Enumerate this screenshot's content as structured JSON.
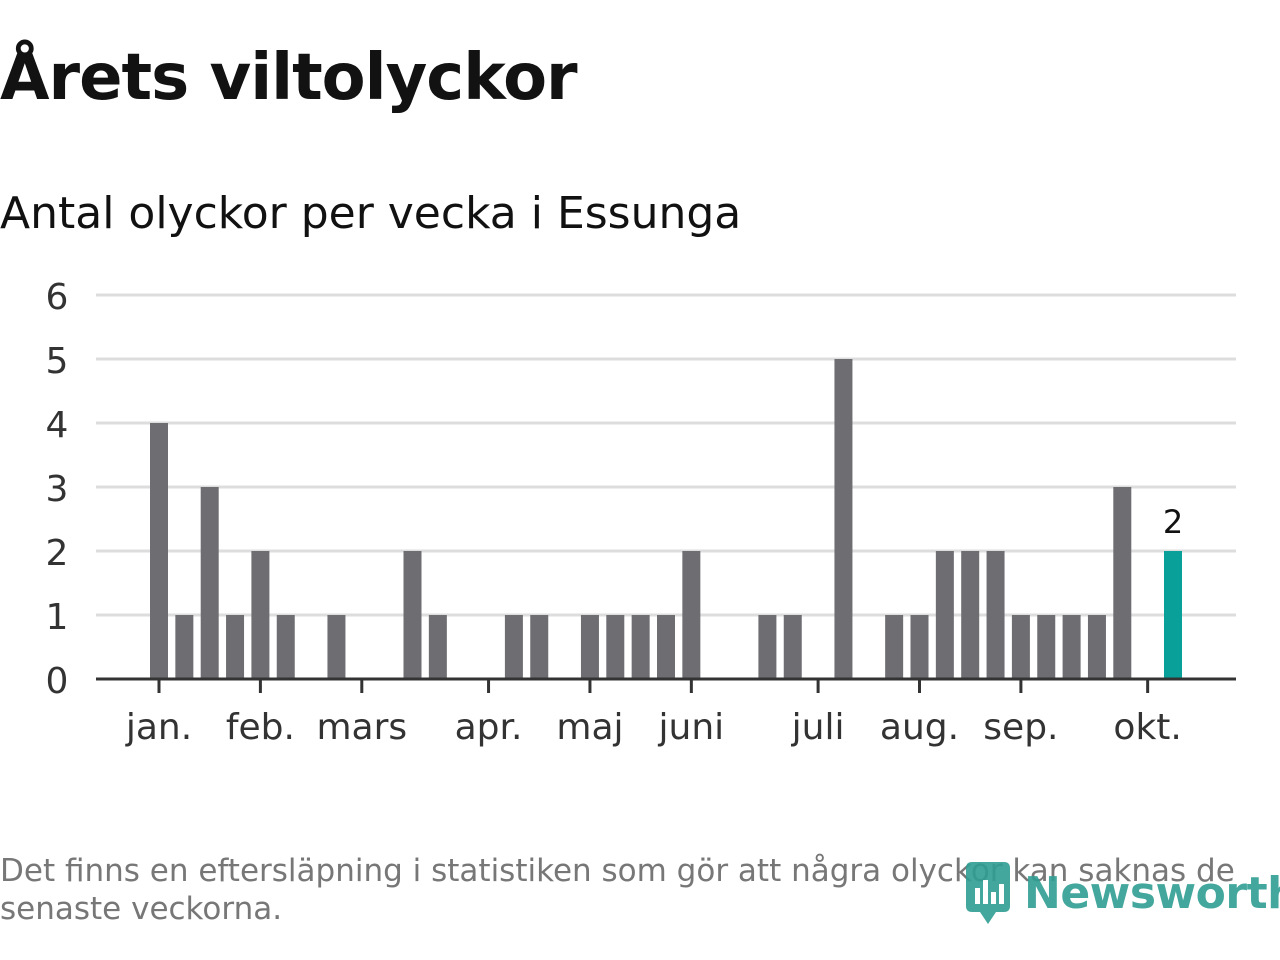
{
  "title": "Årets viltolyckor",
  "subtitle": "Antal olyckor per vecka i Essunga",
  "note": "Det finns en eftersläpning i statistiken som gör att några olyckor kan saknas de senaste veckorna.",
  "logo_text": "Newsworthy",
  "colors": {
    "bar": "#6e6d72",
    "highlight": "#09a09a",
    "grid": "#dddddd",
    "axis": "#333333",
    "logo": "#2f9e93"
  },
  "chart_data": {
    "type": "bar",
    "x": [
      1,
      2,
      3,
      4,
      5,
      6,
      7,
      8,
      9,
      10,
      11,
      12,
      13,
      14,
      15,
      16,
      17,
      18,
      19,
      20,
      21,
      22,
      23,
      24,
      25,
      26,
      27,
      28,
      29,
      30,
      31,
      32,
      33,
      34,
      35,
      36,
      37,
      38,
      39,
      40,
      41
    ],
    "values": [
      4,
      1,
      3,
      1,
      2,
      1,
      0,
      1,
      0,
      0,
      2,
      1,
      0,
      0,
      1,
      1,
      0,
      1,
      1,
      1,
      1,
      2,
      0,
      0,
      1,
      1,
      0,
      5,
      0,
      1,
      1,
      2,
      2,
      2,
      1,
      1,
      1,
      1,
      3,
      0,
      2
    ],
    "highlight_index": 40,
    "highlight_label": "2",
    "ylim": [
      0,
      6
    ],
    "yticks": [
      "0",
      "1",
      "2",
      "3",
      "4",
      "5",
      "6"
    ],
    "month_ticks": [
      {
        "label": "jan.",
        "week": 1
      },
      {
        "label": "feb.",
        "week": 5
      },
      {
        "label": "mars",
        "week": 9
      },
      {
        "label": "apr.",
        "week": 14
      },
      {
        "label": "maj",
        "week": 18
      },
      {
        "label": "juni",
        "week": 22
      },
      {
        "label": "juli",
        "week": 27
      },
      {
        "label": "aug.",
        "week": 31
      },
      {
        "label": "sep.",
        "week": 35
      },
      {
        "label": "okt.",
        "week": 40
      }
    ],
    "grid": true,
    "xlabel": "",
    "ylabel": ""
  }
}
